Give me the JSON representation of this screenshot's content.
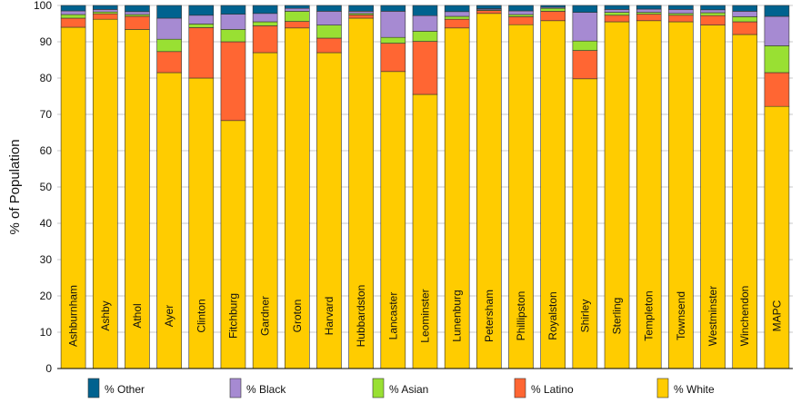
{
  "chart_data": {
    "type": "bar",
    "stacked": true,
    "title": "",
    "xlabel": "",
    "ylabel": "% of Population",
    "ylim": [
      0,
      100
    ],
    "yticks": [
      0,
      10,
      20,
      30,
      40,
      50,
      60,
      70,
      80,
      90,
      100
    ],
    "grid": "horizontal",
    "legend_position": "bottom",
    "categories": [
      "Ashburnham",
      "Ashby",
      "Athol",
      "Ayer",
      "Clinton",
      "Fitchburg",
      "Gardner",
      "Groton",
      "Harvard",
      "Hubbardston",
      "Lancaster",
      "Leominster",
      "Lunenburg",
      "Petersham",
      "Phillipston",
      "Royalston",
      "Shirley",
      "Sterling",
      "Templeton",
      "Townsend",
      "Westminster",
      "Winchendon",
      "MAPC"
    ],
    "series": [
      {
        "name": "% White",
        "color": "#FFCC00",
        "values": [
          94.0,
          96.2,
          93.4,
          81.5,
          80.0,
          68.3,
          87.0,
          93.8,
          87.0,
          96.5,
          81.8,
          75.5,
          93.8,
          97.8,
          94.7,
          95.8,
          79.8,
          95.5,
          95.8,
          95.5,
          94.6,
          92.0,
          72.2
        ]
      },
      {
        "name": "% Latino",
        "color": "#FF6633",
        "values": [
          2.5,
          1.5,
          3.6,
          5.8,
          13.9,
          21.7,
          7.4,
          1.8,
          4.0,
          0.9,
          7.8,
          14.6,
          2.4,
          0.8,
          2.2,
          2.6,
          7.8,
          1.8,
          1.8,
          1.8,
          2.6,
          3.5,
          9.3
        ]
      },
      {
        "name": "% Asian",
        "color": "#99E033",
        "values": [
          1.0,
          0.5,
          0.5,
          3.4,
          1.0,
          3.4,
          1.1,
          2.8,
          3.6,
          0.4,
          1.6,
          2.8,
          0.8,
          0.2,
          0.6,
          0.8,
          2.6,
          0.8,
          0.5,
          0.5,
          0.8,
          1.4,
          7.4
        ]
      },
      {
        "name": "% Black",
        "color": "#A68AD2",
        "values": [
          1.0,
          0.7,
          0.8,
          5.8,
          2.4,
          4.2,
          2.3,
          0.8,
          3.8,
          0.6,
          7.2,
          4.3,
          1.3,
          0.3,
          1.0,
          0.3,
          7.9,
          0.8,
          0.9,
          1.1,
          0.8,
          1.5,
          8.1
        ]
      },
      {
        "name": "% Other",
        "color": "#00628F",
        "values": [
          1.5,
          1.1,
          1.7,
          3.5,
          2.7,
          2.4,
          2.2,
          0.8,
          1.6,
          1.6,
          1.6,
          2.8,
          1.7,
          0.9,
          1.5,
          0.5,
          1.9,
          1.1,
          1.0,
          1.1,
          1.2,
          1.6,
          3.0
        ]
      }
    ],
    "legend_order": [
      "% Other",
      "% Black",
      "% Asian",
      "% Latino",
      "% White"
    ]
  }
}
